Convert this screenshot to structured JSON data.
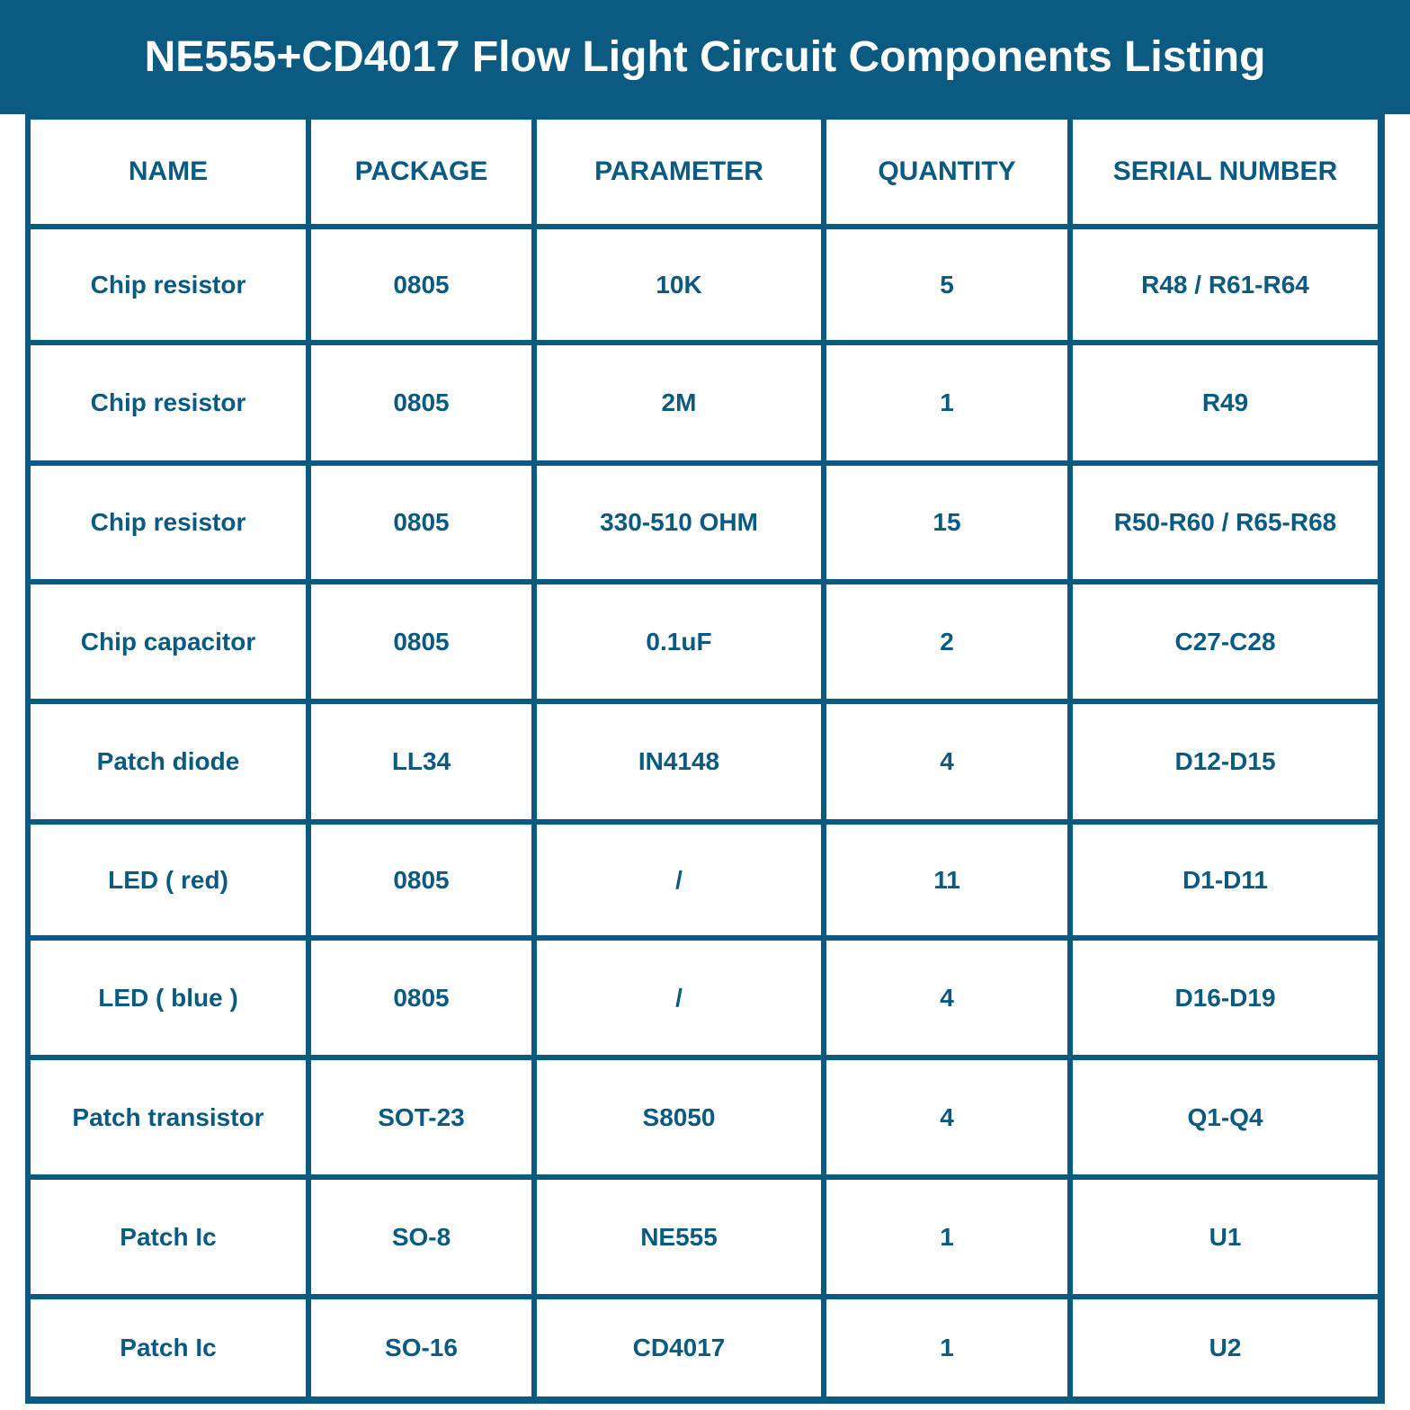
{
  "header": {
    "title": "NE555+CD4017 Flow Light Circuit Components Listing"
  },
  "table": {
    "columns": [
      "NAME",
      "PACKAGE",
      "PARAMETER",
      "QUANTITY",
      "SERIAL NUMBER"
    ],
    "rows": [
      [
        "Chip resistor",
        "0805",
        "10K",
        5,
        "R48 / R61-R64"
      ],
      [
        "Chip resistor",
        "0805",
        "2M",
        1,
        "R49"
      ],
      [
        "Chip resistor",
        "0805",
        "330-510 OHM",
        15,
        "R50-R60 / R65-R68"
      ],
      [
        "Chip capacitor",
        "0805",
        "0.1uF",
        2,
        "C27-C28"
      ],
      [
        "Patch diode",
        "LL34",
        "IN4148",
        4,
        "D12-D15"
      ],
      [
        "LED ( red)",
        "0805",
        "/",
        11,
        "D1-D11"
      ],
      [
        "LED ( blue )",
        "0805",
        "/",
        4,
        "D16-D19"
      ],
      [
        "Patch transistor",
        "SOT-23",
        "S8050",
        4,
        "Q1-Q4"
      ],
      [
        "Patch Ic",
        "SO-8",
        "NE555",
        1,
        "U1"
      ],
      [
        "Patch Ic",
        "SO-16",
        "CD4017",
        1,
        "U2"
      ]
    ]
  }
}
